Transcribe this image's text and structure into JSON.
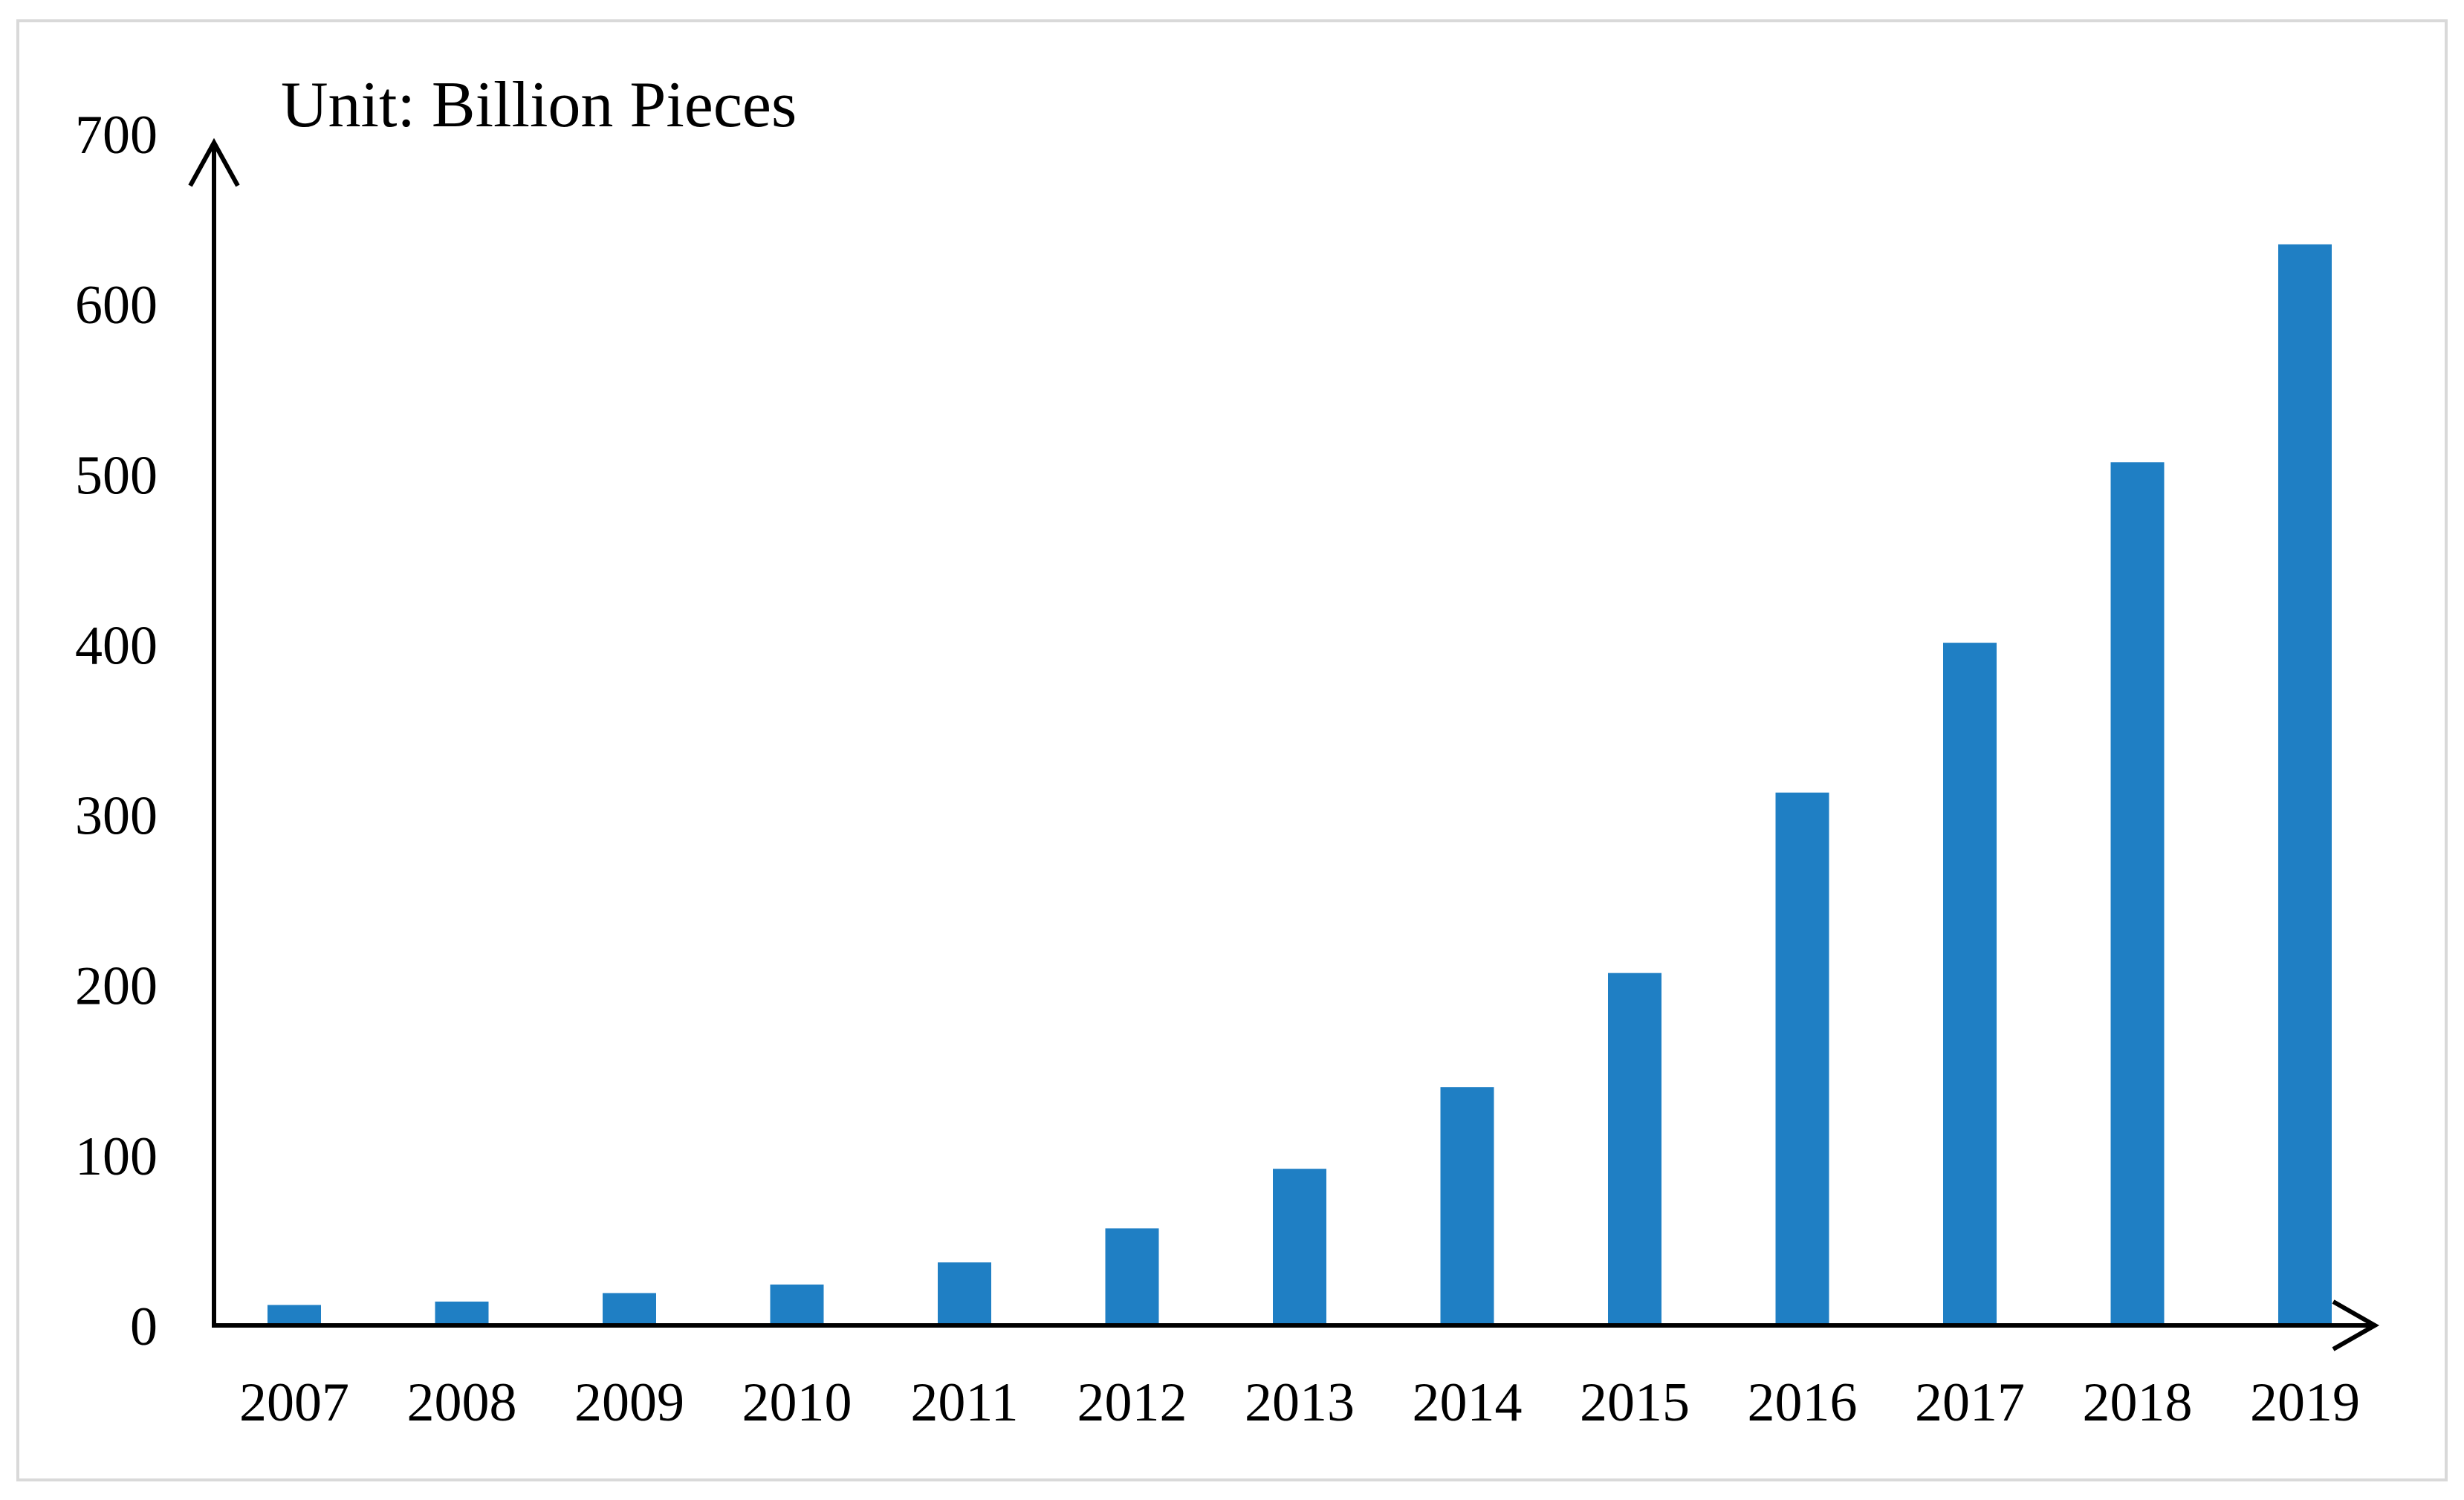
{
  "chart_data": {
    "type": "bar",
    "title": "",
    "unit_label": "Unit: Billion Pieces",
    "xlabel": "",
    "ylabel": "",
    "categories": [
      "2007",
      "2008",
      "2009",
      "2010",
      "2011",
      "2012",
      "2013",
      "2014",
      "2015",
      "2016",
      "2017",
      "2018",
      "2019"
    ],
    "values": [
      12,
      14,
      19,
      24,
      37,
      57,
      92,
      140,
      207,
      313,
      401,
      507,
      635
    ],
    "ylim": [
      0,
      700
    ],
    "yticks": [
      "0",
      "100",
      "200",
      "300",
      "400",
      "500",
      "600",
      "700"
    ],
    "grid": false,
    "legend": "none",
    "bar_color": "#1f7fc4"
  }
}
